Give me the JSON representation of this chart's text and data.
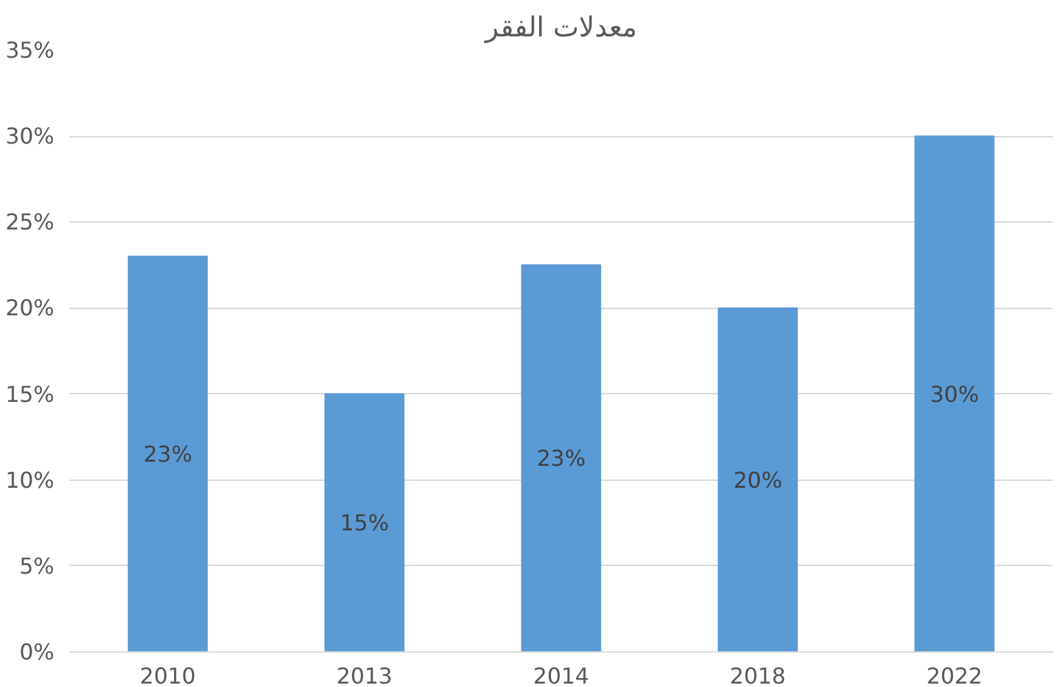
{
  "chart_data": {
    "type": "bar",
    "title": "معدلات الفقر",
    "categories": [
      "2010",
      "2013",
      "2014",
      "2018",
      "2022"
    ],
    "values": [
      23,
      15,
      22.5,
      20,
      30
    ],
    "value_labels": [
      "23%",
      "15%",
      "23%",
      "20%",
      "30%"
    ],
    "color": "#5b9bd5",
    "ylim": [
      0,
      35
    ],
    "yticks": [
      {
        "value": 0,
        "label": "0%"
      },
      {
        "value": 5,
        "label": "5%"
      },
      {
        "value": 10,
        "label": "10%"
      },
      {
        "value": 15,
        "label": "15%"
      },
      {
        "value": 20,
        "label": "20%"
      },
      {
        "value": 25,
        "label": "25%"
      },
      {
        "value": 30,
        "label": "30%"
      },
      {
        "value": 35,
        "label": "35%"
      }
    ],
    "grid": "y"
  }
}
